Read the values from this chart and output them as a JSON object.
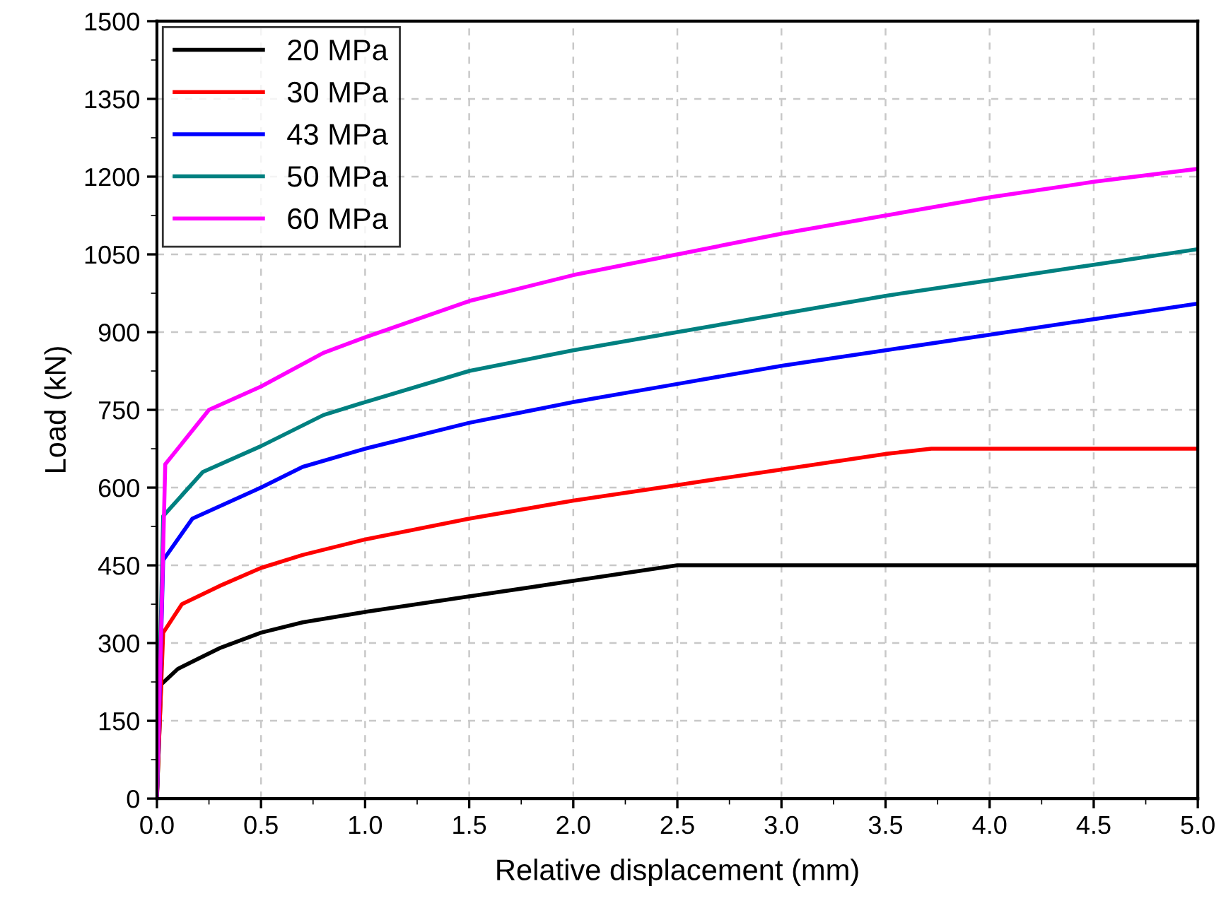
{
  "chart_data": {
    "type": "line",
    "xlabel": "Relative displacement (mm)",
    "ylabel": "Load (kN)",
    "xlim": [
      0,
      5
    ],
    "ylim": [
      0,
      1500
    ],
    "xticks": [
      {
        "value": 0,
        "label": "0.0"
      },
      {
        "value": 0.5,
        "label": "0.5"
      },
      {
        "value": 1,
        "label": "1.0"
      },
      {
        "value": 1.5,
        "label": "1.5"
      },
      {
        "value": 2,
        "label": "2.0"
      },
      {
        "value": 2.5,
        "label": "2.5"
      },
      {
        "value": 3,
        "label": "3.0"
      },
      {
        "value": 3.5,
        "label": "3.5"
      },
      {
        "value": 4,
        "label": "4.0"
      },
      {
        "value": 4.5,
        "label": "4.5"
      },
      {
        "value": 5,
        "label": "5.0"
      }
    ],
    "yticks": [
      0,
      150,
      300,
      450,
      600,
      750,
      900,
      1050,
      1200,
      1350,
      1500
    ],
    "grid": true,
    "legend": "top left",
    "series": [
      {
        "name": "20 MPa",
        "color": "#000000",
        "x": [
          0,
          0.02,
          0.1,
          0.2,
          0.3,
          0.5,
          0.7,
          1.0,
          1.5,
          2.0,
          2.5,
          5.0
        ],
        "values": [
          0,
          220,
          250,
          270,
          290,
          320,
          340,
          360,
          390,
          420,
          450,
          450
        ]
      },
      {
        "name": "30 MPa",
        "color": "#ff0000",
        "x": [
          0,
          0.03,
          0.12,
          0.3,
          0.5,
          0.7,
          1.0,
          1.5,
          2.0,
          2.5,
          3.0,
          3.5,
          3.72,
          5.0
        ],
        "values": [
          0,
          320,
          375,
          410,
          445,
          470,
          500,
          540,
          575,
          605,
          635,
          665,
          675,
          675
        ]
      },
      {
        "name": "43 MPa",
        "color": "#0000ff",
        "x": [
          0,
          0.03,
          0.17,
          0.5,
          0.7,
          1.0,
          1.5,
          2.0,
          2.5,
          3.0,
          3.5,
          4.0,
          4.5,
          5.0
        ],
        "values": [
          0,
          460,
          540,
          600,
          640,
          675,
          725,
          765,
          800,
          835,
          865,
          895,
          925,
          955
        ]
      },
      {
        "name": "50 MPa",
        "color": "#008080",
        "x": [
          0,
          0.03,
          0.22,
          0.5,
          0.8,
          1.0,
          1.5,
          2.0,
          2.5,
          3.0,
          3.5,
          4.0,
          4.5,
          5.0
        ],
        "values": [
          0,
          545,
          630,
          680,
          740,
          765,
          825,
          865,
          900,
          935,
          970,
          1000,
          1030,
          1060
        ]
      },
      {
        "name": "60 MPa",
        "color": "#ff00ff",
        "x": [
          0,
          0.04,
          0.25,
          0.5,
          0.8,
          1.0,
          1.5,
          2.0,
          2.5,
          3.0,
          3.5,
          4.0,
          4.5,
          5.0
        ],
        "values": [
          0,
          645,
          750,
          795,
          860,
          890,
          960,
          1010,
          1050,
          1090,
          1125,
          1160,
          1190,
          1215
        ]
      }
    ]
  }
}
